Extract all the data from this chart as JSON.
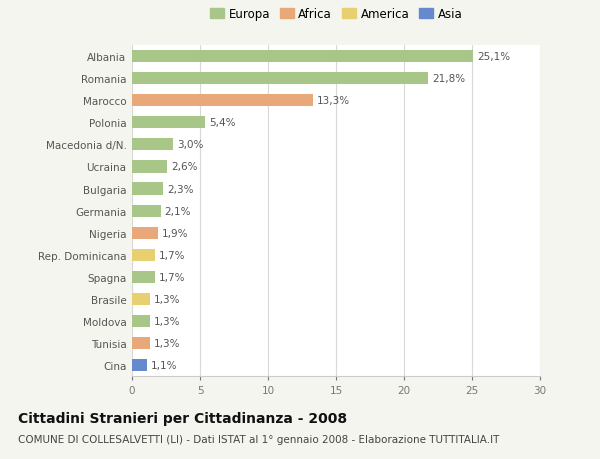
{
  "countries": [
    "Albania",
    "Romania",
    "Marocco",
    "Polonia",
    "Macedonia d/N.",
    "Ucraina",
    "Bulgaria",
    "Germania",
    "Nigeria",
    "Rep. Dominicana",
    "Spagna",
    "Brasile",
    "Moldova",
    "Tunisia",
    "Cina"
  ],
  "values": [
    25.1,
    21.8,
    13.3,
    5.4,
    3.0,
    2.6,
    2.3,
    2.1,
    1.9,
    1.7,
    1.7,
    1.3,
    1.3,
    1.3,
    1.1
  ],
  "labels": [
    "25,1%",
    "21,8%",
    "13,3%",
    "5,4%",
    "3,0%",
    "2,6%",
    "2,3%",
    "2,1%",
    "1,9%",
    "1,7%",
    "1,7%",
    "1,3%",
    "1,3%",
    "1,3%",
    "1,1%"
  ],
  "continent": [
    "Europa",
    "Europa",
    "Africa",
    "Europa",
    "Europa",
    "Europa",
    "Europa",
    "Europa",
    "Africa",
    "America",
    "Europa",
    "America",
    "Europa",
    "Africa",
    "Asia"
  ],
  "colors": {
    "Europa": "#a8c688",
    "Africa": "#e8a87a",
    "America": "#e8d070",
    "Asia": "#6688cc"
  },
  "xlim": [
    0,
    30
  ],
  "xticks": [
    0,
    5,
    10,
    15,
    20,
    25,
    30
  ],
  "title": "Cittadini Stranieri per Cittadinanza - 2008",
  "subtitle": "COMUNE DI COLLESALVETTI (LI) - Dati ISTAT al 1° gennaio 2008 - Elaborazione TUTTITALIA.IT",
  "bg_color": "#f5f5f0",
  "plot_bg_color": "#ffffff",
  "grid_color": "#d8d8d8",
  "label_fontsize": 7.5,
  "tick_fontsize": 7.5,
  "legend_fontsize": 8.5,
  "title_fontsize": 10,
  "subtitle_fontsize": 7.5,
  "bar_height": 0.55
}
